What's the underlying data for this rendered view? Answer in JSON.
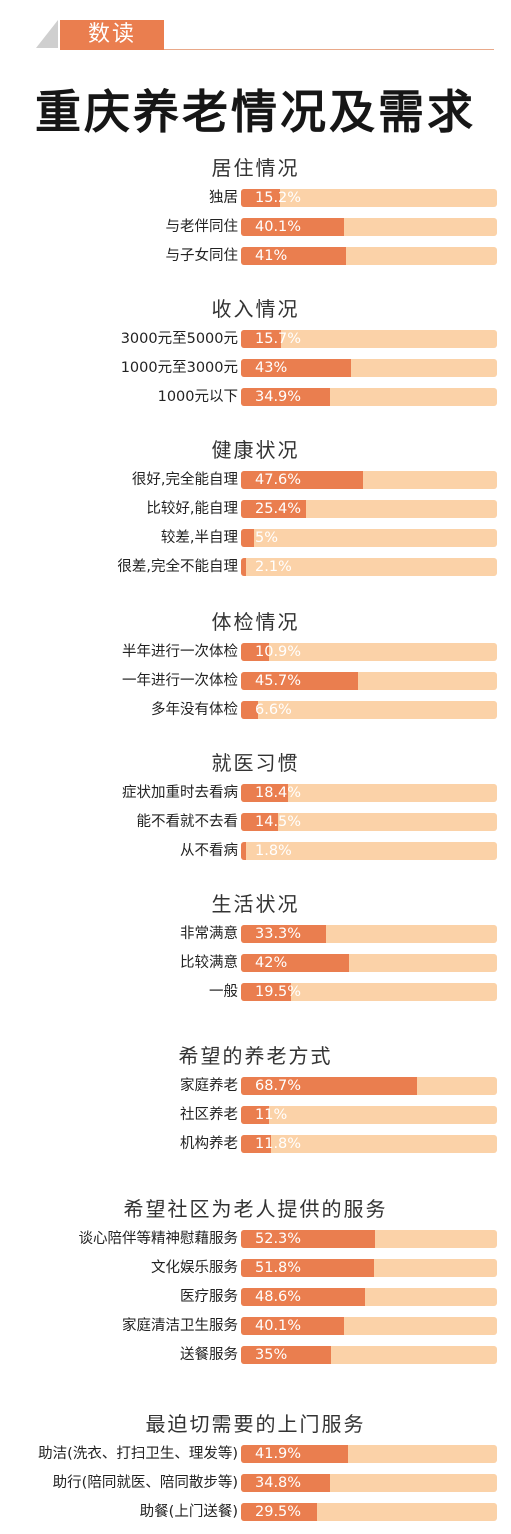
{
  "header": {
    "tag": "数读",
    "title": "重庆养老情况及需求"
  },
  "colors": {
    "accent": "#ea7e4f",
    "track": "#fbd2a8"
  },
  "chart_data": [
    {
      "type": "bar",
      "title": "居住情况",
      "categories": [
        "独居",
        "与老伴同住",
        "与子女同住"
      ],
      "values": [
        15.2,
        40.1,
        41
      ],
      "labels": [
        "15.2%",
        "40.1%",
        "41%"
      ]
    },
    {
      "type": "bar",
      "title": "收入情况",
      "categories": [
        "3000元至5000元",
        "1000元至3000元",
        "1000元以下"
      ],
      "values": [
        15.7,
        43,
        34.9
      ],
      "labels": [
        "15.7%",
        "43%",
        "34.9%"
      ]
    },
    {
      "type": "bar",
      "title": "健康状况",
      "categories": [
        "很好,完全能自理",
        "比较好,能自理",
        "较差,半自理",
        "很差,完全不能自理"
      ],
      "values": [
        47.6,
        25.4,
        5,
        2.1
      ],
      "labels": [
        "47.6%",
        "25.4%",
        "5%",
        "2.1%"
      ]
    },
    {
      "type": "bar",
      "title": "体检情况",
      "categories": [
        "半年进行一次体检",
        "一年进行一次体检",
        "多年没有体检"
      ],
      "values": [
        10.9,
        45.7,
        6.6
      ],
      "labels": [
        "10.9%",
        "45.7%",
        "6.6%"
      ]
    },
    {
      "type": "bar",
      "title": "就医习惯",
      "categories": [
        "症状加重时去看病",
        "能不看就不去看",
        "从不看病"
      ],
      "values": [
        18.4,
        14.5,
        1.8
      ],
      "labels": [
        "18.4%",
        "14.5%",
        "1.8%"
      ]
    },
    {
      "type": "bar",
      "title": "生活状况",
      "categories": [
        "非常满意",
        "比较满意",
        "一般"
      ],
      "values": [
        33.3,
        42,
        19.5
      ],
      "labels": [
        "33.3%",
        "42%",
        "19.5%"
      ]
    },
    {
      "type": "bar",
      "title": "希望的养老方式",
      "categories": [
        "家庭养老",
        "社区养老",
        "机构养老"
      ],
      "values": [
        68.7,
        11,
        11.8
      ],
      "labels": [
        "68.7%",
        "11%",
        "11.8%"
      ]
    },
    {
      "type": "bar",
      "title": "希望社区为老人提供的服务",
      "categories": [
        "谈心陪伴等精神慰藉服务",
        "文化娱乐服务",
        "医疗服务",
        "家庭清洁卫生服务",
        "送餐服务"
      ],
      "values": [
        52.3,
        51.8,
        48.6,
        40.1,
        35
      ],
      "labels": [
        "52.3%",
        "51.8%",
        "48.6%",
        "40.1%",
        "35%"
      ]
    },
    {
      "type": "bar",
      "title": "最迫切需要的上门服务",
      "categories": [
        "助洁(洗衣、打扫卫生、理发等)",
        "助行(陪同就医、陪同散步等)",
        "助餐(上门送餐)"
      ],
      "values": [
        41.9,
        34.8,
        29.5
      ],
      "labels": [
        "41.9%",
        "34.8%",
        "29.5%"
      ]
    }
  ]
}
